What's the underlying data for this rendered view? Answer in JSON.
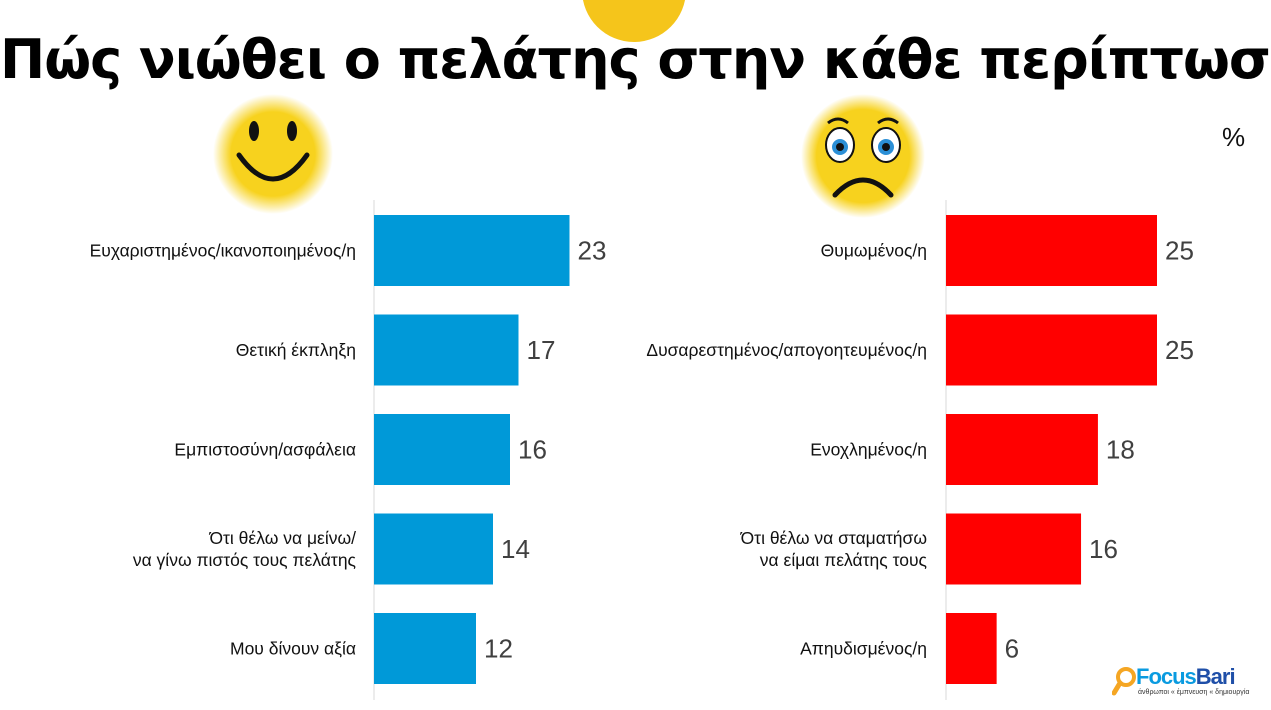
{
  "title": "Πώς νιώθει ο πελάτης στην κάθε περίπτωση;",
  "unit": "%",
  "logo": {
    "name_a": "Focus",
    "name_b": "Bari",
    "tagline": "άνθρωποι « έμπνευση « δημιουργία"
  },
  "colors": {
    "positive": "#0099d8",
    "negative": "#ff0000",
    "face": "#f7d21e",
    "logo_a": "#0a9be0",
    "logo_b": "#1f4fa8"
  },
  "chart_data": [
    {
      "type": "bar",
      "orientation": "horizontal",
      "group": "positive",
      "icon": "happy-face-icon",
      "categories": [
        [
          "Ευχαριστημένος/ικανοποιημένος/η"
        ],
        [
          "Θετική έκπληξη"
        ],
        [
          "Εμπιστοσύνη/ασφάλεια"
        ],
        [
          "Ότι θέλω να μείνω/",
          "να γίνω πιστός τους πελάτης"
        ],
        [
          "Μου δίνουν αξία"
        ]
      ],
      "values": [
        23,
        17,
        16,
        14,
        12
      ],
      "color": "#0099d8"
    },
    {
      "type": "bar",
      "orientation": "horizontal",
      "group": "negative",
      "icon": "sad-face-icon",
      "categories": [
        [
          "Θυμωμένος/η"
        ],
        [
          "Δυσαρεστημένος/απογοητευμένος/η"
        ],
        [
          "Ενοχλημένος/η"
        ],
        [
          "Ότι θέλω να σταματήσω",
          "να είμαι πελάτης τους"
        ],
        [
          "Απηυδισμένος/η"
        ]
      ],
      "values": [
        25,
        25,
        18,
        16,
        6
      ],
      "color": "#ff0000"
    }
  ]
}
